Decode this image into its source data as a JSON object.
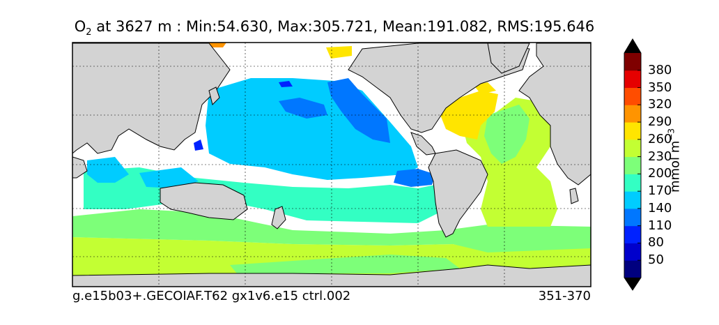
{
  "title": {
    "species": "O",
    "subscript": "2",
    "text": " at 3627 m : Min:54.630, Max:305.721, Mean:191.082, RMS:195.646"
  },
  "footer": {
    "case_name": "g.e15b03+.GECOIAF.T62 gx1v6.e15 ctrl.002",
    "years": "351-370"
  },
  "colorbar": {
    "units_main": "mmol m",
    "units_exp": "−3",
    "ticks": [
      "50",
      "80",
      "110",
      "140",
      "170",
      "200",
      "230",
      "260",
      "290",
      "320",
      "350",
      "380"
    ],
    "levels": [
      {
        "value": "below",
        "color": "#00007f"
      },
      {
        "value": "35-65",
        "color": "#0000cc"
      },
      {
        "value": "65-95",
        "color": "#0022ff"
      },
      {
        "value": "95-125",
        "color": "#0077ff"
      },
      {
        "value": "125-155",
        "color": "#00ccff"
      },
      {
        "value": "155-185",
        "color": "#33ffc3"
      },
      {
        "value": "185-215",
        "color": "#7dff79"
      },
      {
        "value": "215-245",
        "color": "#c3ff33"
      },
      {
        "value": "245-275",
        "color": "#ffe500"
      },
      {
        "value": "275-305",
        "color": "#ff9400"
      },
      {
        "value": "305-335",
        "color": "#ff4d00"
      },
      {
        "value": "335-365",
        "color": "#e50000"
      },
      {
        "value": "365-395",
        "color": "#7f0000"
      }
    ]
  },
  "map_colors": {
    "land": "#d3d3d3",
    "no_data": "#ffffff"
  }
}
